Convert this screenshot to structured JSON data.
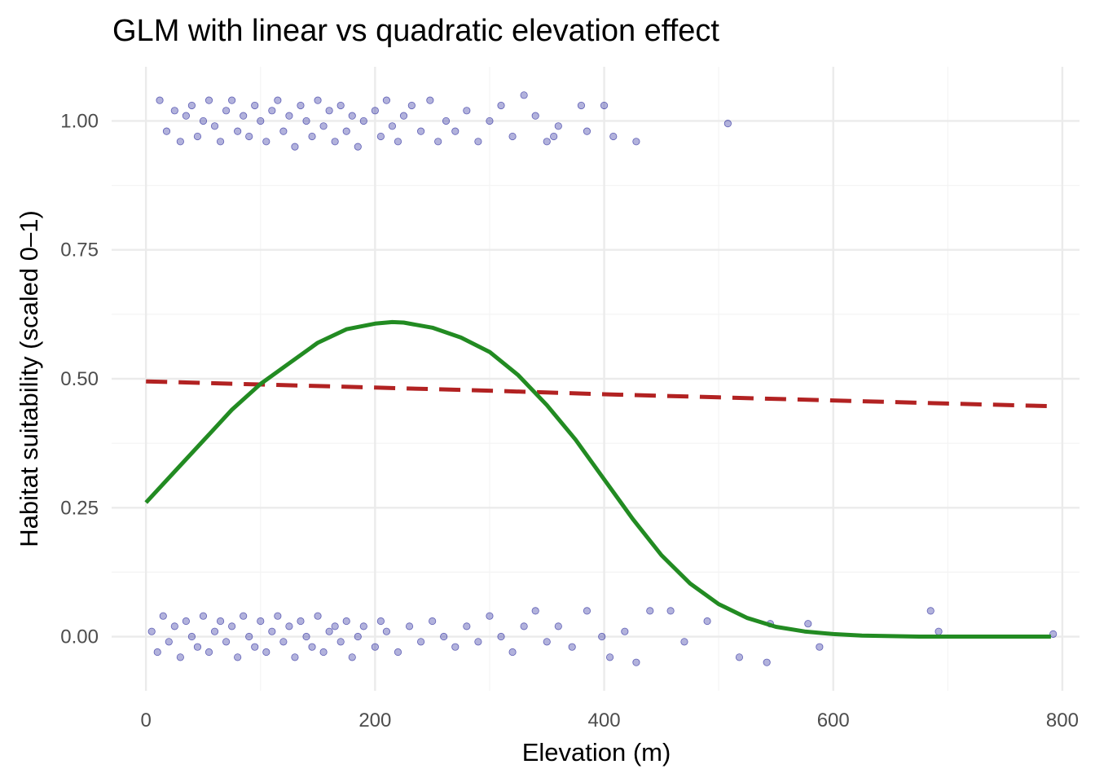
{
  "chart_data": {
    "type": "scatter",
    "title": "GLM with linear vs quadratic elevation effect",
    "xlabel": "Elevation (m)",
    "ylabel": "Habitat suitability (scaled 0–1)",
    "xlim": [
      -30,
      815
    ],
    "ylim": [
      -0.105,
      1.105
    ],
    "x_ticks": [
      0,
      200,
      400,
      600,
      800
    ],
    "x_tick_labels": [
      "0",
      "200",
      "400",
      "600",
      "800"
    ],
    "y_ticks": [
      0.0,
      0.25,
      0.5,
      0.75,
      1.0
    ],
    "y_tick_labels": [
      "0.00",
      "0.25",
      "0.50",
      "0.75",
      "1.00"
    ],
    "grid": true,
    "legend": "none",
    "series": [
      {
        "type": "scatter",
        "color": "#00008b",
        "opacity": 0.3,
        "points": [
          [
            12,
            1.04
          ],
          [
            18,
            0.98
          ],
          [
            25,
            1.02
          ],
          [
            30,
            0.96
          ],
          [
            35,
            1.01
          ],
          [
            40,
            1.03
          ],
          [
            45,
            0.97
          ],
          [
            50,
            1.0
          ],
          [
            55,
            1.04
          ],
          [
            60,
            0.99
          ],
          [
            65,
            0.96
          ],
          [
            70,
            1.02
          ],
          [
            75,
            1.04
          ],
          [
            80,
            0.98
          ],
          [
            85,
            1.01
          ],
          [
            90,
            0.97
          ],
          [
            95,
            1.03
          ],
          [
            100,
            1.0
          ],
          [
            105,
            0.96
          ],
          [
            110,
            1.02
          ],
          [
            115,
            1.04
          ],
          [
            120,
            0.98
          ],
          [
            125,
            1.01
          ],
          [
            130,
            0.95
          ],
          [
            135,
            1.03
          ],
          [
            140,
            1.0
          ],
          [
            145,
            0.97
          ],
          [
            150,
            1.04
          ],
          [
            155,
            0.99
          ],
          [
            160,
            1.02
          ],
          [
            165,
            0.96
          ],
          [
            170,
            1.03
          ],
          [
            175,
            0.98
          ],
          [
            180,
            1.01
          ],
          [
            185,
            0.95
          ],
          [
            190,
            1.0
          ],
          [
            200,
            1.02
          ],
          [
            205,
            0.97
          ],
          [
            210,
            1.04
          ],
          [
            215,
            0.99
          ],
          [
            220,
            0.96
          ],
          [
            225,
            1.01
          ],
          [
            232,
            1.03
          ],
          [
            240,
            0.98
          ],
          [
            248,
            1.04
          ],
          [
            255,
            0.96
          ],
          [
            262,
            1.0
          ],
          [
            270,
            0.98
          ],
          [
            280,
            1.02
          ],
          [
            290,
            0.96
          ],
          [
            300,
            1.0
          ],
          [
            310,
            1.03
          ],
          [
            320,
            0.97
          ],
          [
            330,
            1.05
          ],
          [
            340,
            1.01
          ],
          [
            350,
            0.96
          ],
          [
            356,
            0.97
          ],
          [
            360,
            0.99
          ],
          [
            380,
            1.03
          ],
          [
            385,
            0.98
          ],
          [
            400,
            1.03
          ],
          [
            408,
            0.97
          ],
          [
            428,
            0.96
          ],
          [
            508,
            0.995
          ],
          [
            5,
            0.01
          ],
          [
            10,
            -0.03
          ],
          [
            15,
            0.04
          ],
          [
            20,
            -0.01
          ],
          [
            25,
            0.02
          ],
          [
            30,
            -0.04
          ],
          [
            35,
            0.03
          ],
          [
            40,
            0.0
          ],
          [
            45,
            -0.02
          ],
          [
            50,
            0.04
          ],
          [
            55,
            -0.03
          ],
          [
            60,
            0.01
          ],
          [
            65,
            0.03
          ],
          [
            70,
            -0.01
          ],
          [
            75,
            0.02
          ],
          [
            80,
            -0.04
          ],
          [
            85,
            0.04
          ],
          [
            90,
            0.0
          ],
          [
            95,
            -0.02
          ],
          [
            100,
            0.03
          ],
          [
            105,
            -0.03
          ],
          [
            110,
            0.01
          ],
          [
            115,
            0.04
          ],
          [
            120,
            -0.01
          ],
          [
            125,
            0.02
          ],
          [
            130,
            -0.04
          ],
          [
            135,
            0.03
          ],
          [
            140,
            0.0
          ],
          [
            145,
            -0.02
          ],
          [
            150,
            0.04
          ],
          [
            155,
            -0.03
          ],
          [
            160,
            0.01
          ],
          [
            165,
            0.02
          ],
          [
            170,
            -0.01
          ],
          [
            175,
            0.03
          ],
          [
            180,
            -0.04
          ],
          [
            185,
            0.0
          ],
          [
            190,
            0.02
          ],
          [
            200,
            -0.02
          ],
          [
            205,
            0.03
          ],
          [
            210,
            0.01
          ],
          [
            220,
            -0.03
          ],
          [
            230,
            0.02
          ],
          [
            240,
            -0.01
          ],
          [
            250,
            0.03
          ],
          [
            260,
            0.0
          ],
          [
            270,
            -0.02
          ],
          [
            280,
            0.02
          ],
          [
            290,
            -0.01
          ],
          [
            300,
            0.04
          ],
          [
            310,
            0.0
          ],
          [
            320,
            -0.03
          ],
          [
            330,
            0.02
          ],
          [
            340,
            0.05
          ],
          [
            350,
            -0.01
          ],
          [
            360,
            0.02
          ],
          [
            372,
            -0.02
          ],
          [
            385,
            0.05
          ],
          [
            398,
            0.0
          ],
          [
            405,
            -0.04
          ],
          [
            418,
            0.01
          ],
          [
            428,
            -0.05
          ],
          [
            440,
            0.05
          ],
          [
            458,
            0.05
          ],
          [
            470,
            -0.01
          ],
          [
            490,
            0.03
          ],
          [
            518,
            -0.04
          ],
          [
            542,
            -0.05
          ],
          [
            545,
            0.025
          ],
          [
            578,
            0.025
          ],
          [
            588,
            -0.02
          ],
          [
            685,
            0.05
          ],
          [
            692,
            0.01
          ],
          [
            792,
            0.005
          ]
        ]
      },
      {
        "type": "line",
        "color": "#b22222",
        "dash": "dashed",
        "x": [
          0,
          100,
          200,
          300,
          400,
          500,
          600,
          700,
          790
        ],
        "y": [
          0.495,
          0.489,
          0.483,
          0.477,
          0.47,
          0.464,
          0.458,
          0.452,
          0.447
        ]
      },
      {
        "type": "line",
        "color": "#228b22",
        "dash": "solid",
        "x": [
          0,
          25,
          50,
          75,
          100,
          125,
          150,
          175,
          200,
          215,
          225,
          250,
          275,
          300,
          325,
          350,
          375,
          400,
          425,
          450,
          475,
          500,
          525,
          550,
          575,
          600,
          625,
          650,
          675,
          700,
          725,
          750,
          790
        ],
        "y": [
          0.26,
          0.32,
          0.38,
          0.44,
          0.49,
          0.53,
          0.57,
          0.596,
          0.607,
          0.61,
          0.609,
          0.599,
          0.58,
          0.552,
          0.507,
          0.449,
          0.382,
          0.305,
          0.228,
          0.158,
          0.103,
          0.063,
          0.036,
          0.019,
          0.01,
          0.005,
          0.002,
          0.001,
          0.0,
          0.0,
          0.0,
          0.0,
          0.0
        ]
      }
    ]
  }
}
